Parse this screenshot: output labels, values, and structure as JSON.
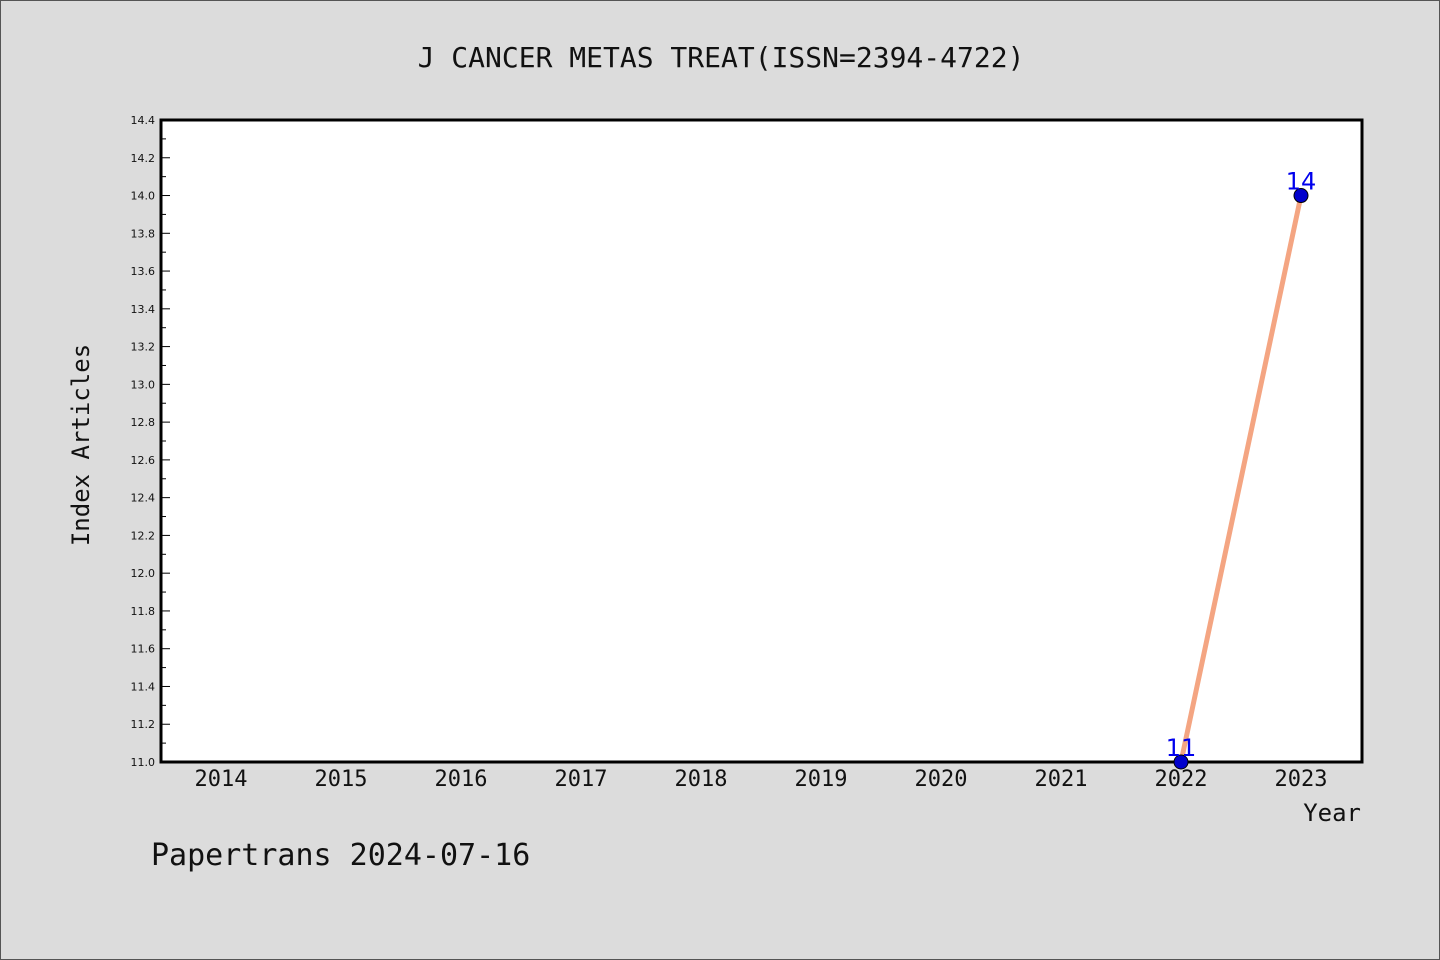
{
  "chart_data": {
    "type": "line",
    "title": "J CANCER METAS TREAT(ISSN=2394-4722)",
    "xlabel": "Year",
    "ylabel": "Index Articles",
    "categories": [
      "2014",
      "2015",
      "2016",
      "2017",
      "2018",
      "2019",
      "2020",
      "2021",
      "2022",
      "2023"
    ],
    "series": [
      {
        "x": [
          "2022",
          "2023"
        ],
        "values": [
          11,
          14
        ],
        "data_labels": [
          "11",
          "14"
        ]
      }
    ],
    "ylim": [
      11.0,
      14.4
    ],
    "yticks": [
      "11.0",
      "11.2",
      "11.4",
      "11.6",
      "11.8",
      "12.0",
      "12.2",
      "12.4",
      "12.6",
      "12.8",
      "13.0",
      "13.2",
      "13.4",
      "13.6",
      "13.8",
      "14.0",
      "14.2",
      "14.4"
    ],
    "grid": false,
    "line_color": "#f4a582",
    "marker_color": "#0000cc",
    "label_color": "#0000ee",
    "background_color": "#dcdcdc",
    "plot_background": "#ffffff"
  },
  "footer": {
    "text": "Papertrans 2024-07-16"
  }
}
